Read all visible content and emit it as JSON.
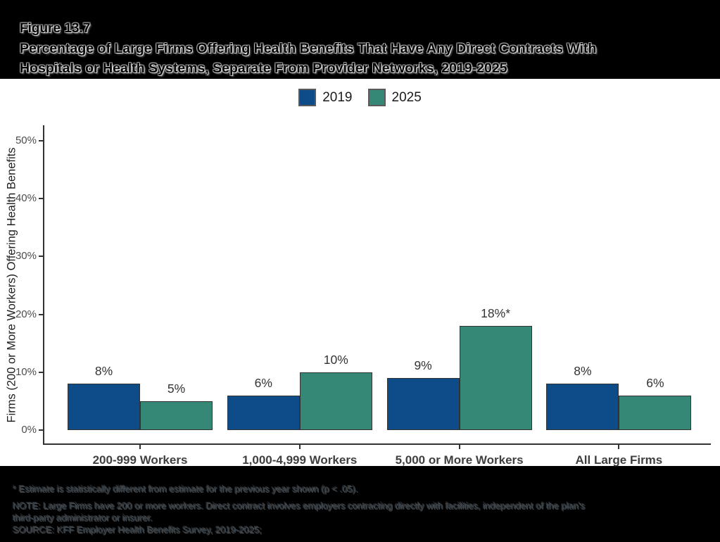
{
  "figure": {
    "label": "Figure 13.7",
    "title_line1": "Percentage of Large Firms Offering Health Benefits That Have Any Direct Contracts With",
    "title_line2": "Hospitals or Health Systems, Separate From Provider Networks, 2019-2025"
  },
  "chart_data": {
    "type": "bar",
    "categories": [
      "200-999 Workers",
      "1,000-4,999 Workers",
      "5,000 or More Workers",
      "All Large Firms"
    ],
    "series": [
      {
        "name": "2019",
        "color": "#0d4c88",
        "values": [
          8,
          6,
          9,
          8
        ],
        "labels": [
          "8%",
          "6%",
          "9%",
          "8%"
        ]
      },
      {
        "name": "2025",
        "color": "#348875",
        "values": [
          5,
          10,
          18,
          6
        ],
        "labels": [
          "5%",
          "10%",
          "18%*",
          "6%"
        ]
      }
    ],
    "xlabel": "",
    "ylabel": "Firms (200 or More Workers) Offering Health Benefits",
    "ylim": [
      0,
      50
    ],
    "yticks": [
      "0%",
      "10%",
      "20%",
      "30%",
      "40%",
      "50%"
    ],
    "grid": "off",
    "legend_position": "top-center",
    "bar_border_color": "#333333",
    "axis_color": "#333333"
  },
  "footnotes": {
    "line1": "* Estimate is statistically different from estimate for the previous year shown (p < .05).",
    "line2": "NOTE: Large Firms have 200 or more workers. Direct contract involves employers contracting directly with facilities, independent of the plan's",
    "line3": "third-party administrator or insurer.",
    "line4": "SOURCE: KFF Employer Health Benefits Survey, 2019-2025;"
  }
}
